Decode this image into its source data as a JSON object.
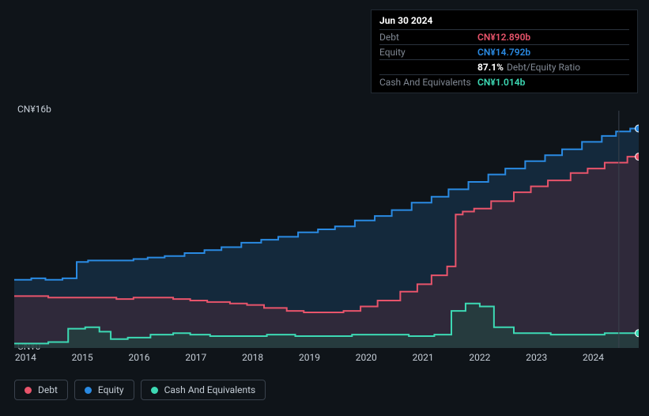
{
  "tooltip": {
    "date": "Jun 30 2024",
    "rows": [
      {
        "label": "Debt",
        "value": "CN¥12.890b",
        "color": "#e8546b"
      },
      {
        "label": "Equity",
        "value": "CN¥14.792b",
        "color": "#2a8ae2"
      },
      {
        "label": "",
        "ratio_pct": "87.1%",
        "ratio_label": "Debt/Equity Ratio"
      },
      {
        "label": "Cash And Equivalents",
        "value": "CN¥1.014b",
        "color": "#3dd9b4"
      }
    ]
  },
  "chart": {
    "type": "area",
    "background_color": "#0f1419",
    "y": {
      "min": 0,
      "max": 16,
      "labels": [
        {
          "text": "CN¥16b",
          "v": 16
        },
        {
          "text": "CN¥0",
          "v": 0
        }
      ],
      "label_fontsize": 12,
      "label_color": "#c5cdd6"
    },
    "x": {
      "min": 2013.8,
      "max": 2024.8,
      "ticks": [
        2014,
        2015,
        2016,
        2017,
        2018,
        2019,
        2020,
        2021,
        2022,
        2023,
        2024
      ],
      "label_fontsize": 12,
      "label_color": "#c5cdd6"
    },
    "vline": {
      "x": 2024.45,
      "color": "#3a424d",
      "width": 1
    },
    "markers": [
      {
        "x": 2024.8,
        "y": 14.8,
        "color": "#2a8ae2"
      },
      {
        "x": 2024.8,
        "y": 12.9,
        "color": "#e8546b"
      },
      {
        "x": 2024.8,
        "y": 1.0,
        "color": "#3dd9b4"
      }
    ],
    "series": [
      {
        "name": "Equity",
        "stroke": "#2a8ae2",
        "fill": "#1a3a5a",
        "fill_opacity": 0.55,
        "line_width": 2,
        "points": [
          [
            2013.8,
            4.6
          ],
          [
            2014.0,
            4.6
          ],
          [
            2014.2,
            4.7
          ],
          [
            2014.5,
            4.6
          ],
          [
            2014.8,
            4.7
          ],
          [
            2015.0,
            5.8
          ],
          [
            2015.2,
            5.9
          ],
          [
            2015.5,
            5.9
          ],
          [
            2015.8,
            5.9
          ],
          [
            2016.0,
            6.0
          ],
          [
            2016.3,
            6.1
          ],
          [
            2016.6,
            6.2
          ],
          [
            2017.0,
            6.4
          ],
          [
            2017.3,
            6.6
          ],
          [
            2017.6,
            6.8
          ],
          [
            2018.0,
            7.1
          ],
          [
            2018.3,
            7.3
          ],
          [
            2018.6,
            7.5
          ],
          [
            2019.0,
            7.8
          ],
          [
            2019.3,
            8.0
          ],
          [
            2019.6,
            8.2
          ],
          [
            2020.0,
            8.6
          ],
          [
            2020.3,
            8.9
          ],
          [
            2020.6,
            9.3
          ],
          [
            2021.0,
            9.8
          ],
          [
            2021.3,
            10.2
          ],
          [
            2021.6,
            10.7
          ],
          [
            2022.0,
            11.2
          ],
          [
            2022.3,
            11.7
          ],
          [
            2022.6,
            12.1
          ],
          [
            2023.0,
            12.6
          ],
          [
            2023.3,
            13.0
          ],
          [
            2023.6,
            13.4
          ],
          [
            2024.0,
            13.9
          ],
          [
            2024.3,
            14.3
          ],
          [
            2024.5,
            14.6
          ],
          [
            2024.8,
            14.8
          ]
        ]
      },
      {
        "name": "Debt",
        "stroke": "#e8546b",
        "fill": "#4a2a38",
        "fill_opacity": 0.5,
        "line_width": 2,
        "points": [
          [
            2013.8,
            3.5
          ],
          [
            2014.2,
            3.5
          ],
          [
            2014.6,
            3.4
          ],
          [
            2015.0,
            3.4
          ],
          [
            2015.4,
            3.4
          ],
          [
            2015.8,
            3.3
          ],
          [
            2016.0,
            3.4
          ],
          [
            2016.4,
            3.4
          ],
          [
            2016.8,
            3.3
          ],
          [
            2017.0,
            3.2
          ],
          [
            2017.4,
            3.1
          ],
          [
            2017.8,
            3.0
          ],
          [
            2018.0,
            2.9
          ],
          [
            2018.4,
            2.7
          ],
          [
            2018.8,
            2.5
          ],
          [
            2019.0,
            2.4
          ],
          [
            2019.4,
            2.4
          ],
          [
            2019.8,
            2.5
          ],
          [
            2020.0,
            2.8
          ],
          [
            2020.4,
            3.2
          ],
          [
            2020.8,
            3.8
          ],
          [
            2021.0,
            4.3
          ],
          [
            2021.3,
            4.9
          ],
          [
            2021.55,
            5.5
          ],
          [
            2021.6,
            9.0
          ],
          [
            2021.8,
            9.2
          ],
          [
            2022.0,
            9.4
          ],
          [
            2022.4,
            9.9
          ],
          [
            2022.8,
            10.5
          ],
          [
            2023.0,
            10.9
          ],
          [
            2023.4,
            11.3
          ],
          [
            2023.8,
            11.8
          ],
          [
            2024.0,
            12.1
          ],
          [
            2024.4,
            12.5
          ],
          [
            2024.8,
            12.9
          ]
        ]
      },
      {
        "name": "Cash And Equivalents",
        "stroke": "#3dd9b4",
        "fill": "#1f4a42",
        "fill_opacity": 0.55,
        "line_width": 2,
        "points": [
          [
            2013.8,
            0.3
          ],
          [
            2014.2,
            0.3
          ],
          [
            2014.6,
            0.4
          ],
          [
            2014.9,
            1.3
          ],
          [
            2015.2,
            1.4
          ],
          [
            2015.4,
            1.1
          ],
          [
            2015.6,
            0.6
          ],
          [
            2016.0,
            0.7
          ],
          [
            2016.4,
            0.9
          ],
          [
            2016.8,
            1.0
          ],
          [
            2017.0,
            0.9
          ],
          [
            2017.5,
            0.8
          ],
          [
            2018.0,
            0.8
          ],
          [
            2018.5,
            0.9
          ],
          [
            2019.0,
            0.8
          ],
          [
            2019.5,
            0.8
          ],
          [
            2020.0,
            0.9
          ],
          [
            2020.5,
            0.9
          ],
          [
            2021.0,
            0.8
          ],
          [
            2021.4,
            0.9
          ],
          [
            2021.6,
            2.5
          ],
          [
            2021.9,
            3.0
          ],
          [
            2022.1,
            2.8
          ],
          [
            2022.4,
            1.4
          ],
          [
            2022.8,
            1.0
          ],
          [
            2023.0,
            1.0
          ],
          [
            2023.5,
            0.9
          ],
          [
            2024.0,
            0.9
          ],
          [
            2024.4,
            1.0
          ],
          [
            2024.8,
            1.0
          ]
        ]
      }
    ]
  },
  "legend": {
    "items": [
      {
        "label": "Debt",
        "color": "#e8546b"
      },
      {
        "label": "Equity",
        "color": "#2a8ae2"
      },
      {
        "label": "Cash And Equivalents",
        "color": "#3dd9b4"
      }
    ],
    "border_color": "#3a424d",
    "fontsize": 12
  }
}
